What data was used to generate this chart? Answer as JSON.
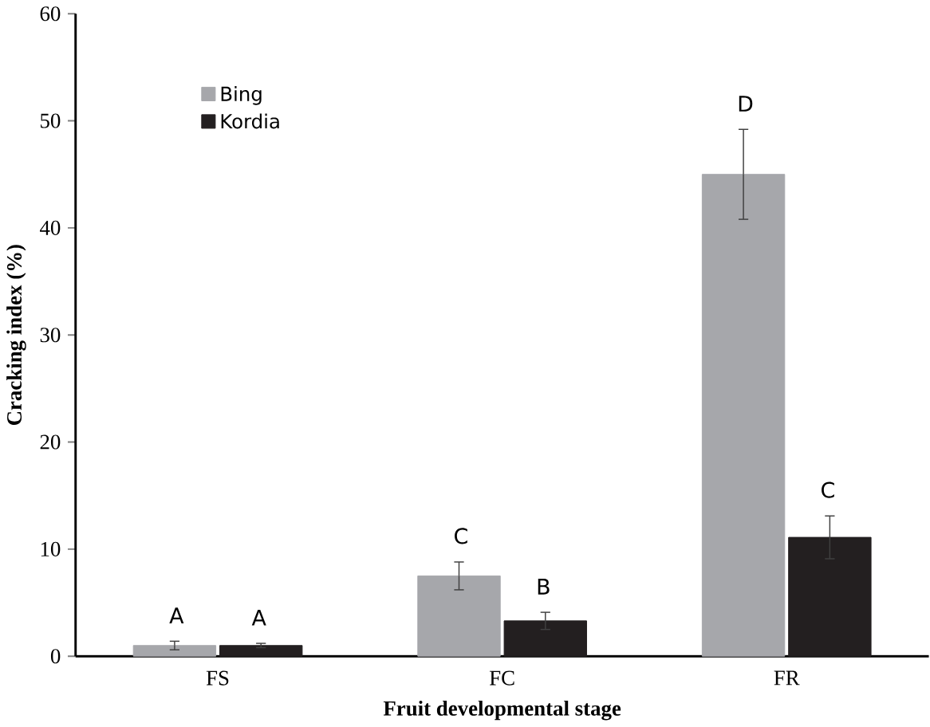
{
  "chart_data": {
    "type": "bar",
    "xlabel": "Fruit developmental stage",
    "ylabel": "Cracking index (%)",
    "categories": [
      "FS",
      "FC",
      "FR"
    ],
    "series": [
      {
        "name": "Bing",
        "color": "#a6a7ab",
        "values": [
          1.0,
          7.5,
          45
        ],
        "errors": [
          0.4,
          1.3,
          4.2
        ]
      },
      {
        "name": "Kordia",
        "color": "#231f20",
        "values": [
          1.0,
          3.3,
          11.1
        ],
        "errors": [
          0.2,
          0.8,
          2.0
        ]
      }
    ],
    "annotations": [
      "A",
      "A",
      "C",
      "B",
      "D",
      "C"
    ],
    "ylim": [
      0,
      60
    ],
    "yticks": [
      0,
      10,
      20,
      30,
      40,
      50,
      60
    ],
    "legend": "top left",
    "grid": false
  }
}
